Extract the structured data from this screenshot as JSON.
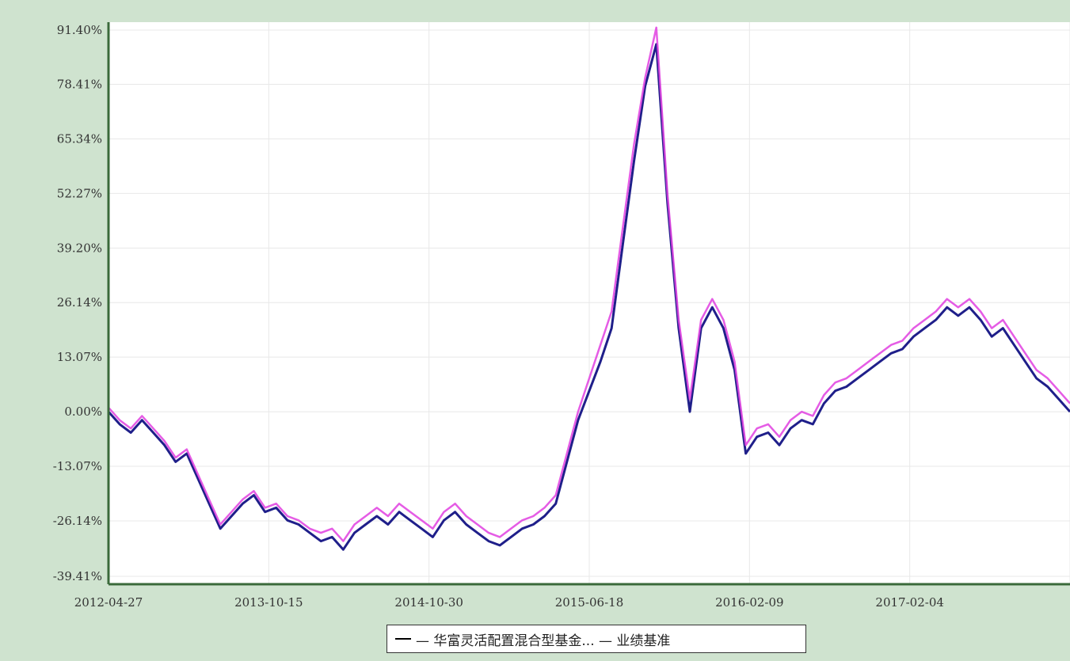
{
  "colors": {
    "frame": "#cfe3cf",
    "plot_bg": "#ffffff",
    "grid": "#e8e8e8",
    "series_fund": "#1f1f8a",
    "series_bench": "#e040e0",
    "axis": "#3a6a3a"
  },
  "chart_data": {
    "type": "line",
    "y_tick_labels": [
      "91.40%",
      "78.41%",
      "65.34%",
      "52.27%",
      "39.20%",
      "26.14%",
      "13.07%",
      "0.00%",
      "-13.07%",
      "-26.14%",
      "-39.41%"
    ],
    "y_tick_values": [
      91.4,
      78.41,
      65.34,
      52.27,
      39.2,
      26.14,
      13.07,
      0.0,
      -13.07,
      -26.14,
      -39.41
    ],
    "x_tick_labels": [
      "2012-04-27",
      "2013-10-15",
      "2014-10-30",
      "2015-06-18",
      "2016-02-09",
      "2017-02-04"
    ],
    "ylim": [
      -39.41,
      91.4
    ],
    "grid": true,
    "legend_position": "bottom",
    "legend_text": "— 华富灵活配置混合型基金... — 业绩基准",
    "series": [
      {
        "color_key": "series_fund",
        "values": [
          0,
          -3,
          -5,
          -2,
          -5,
          -8,
          -12,
          -10,
          -16,
          -22,
          -28,
          -25,
          -22,
          -20,
          -24,
          -23,
          -26,
          -27,
          -29,
          -31,
          -30,
          -33,
          -29,
          -27,
          -25,
          -27,
          -24,
          -26,
          -28,
          -30,
          -26,
          -24,
          -27,
          -29,
          -31,
          -32,
          -30,
          -28,
          -27,
          -25,
          -22,
          -12,
          -2,
          5,
          12,
          20,
          40,
          60,
          78,
          88,
          50,
          20,
          0,
          20,
          25,
          20,
          10,
          -10,
          -6,
          -5,
          -8,
          -4,
          -2,
          -3,
          2,
          5,
          6,
          8,
          10,
          12,
          14,
          15,
          18,
          20,
          22,
          25,
          23,
          25,
          22,
          18,
          20,
          16,
          12,
          8,
          6,
          3,
          0
        ]
      },
      {
        "color_key": "series_bench",
        "values": [
          1,
          -2,
          -4,
          -1,
          -4,
          -7,
          -11,
          -9,
          -15,
          -21,
          -27,
          -24,
          -21,
          -19,
          -23,
          -22,
          -25,
          -26,
          -28,
          -29,
          -28,
          -31,
          -27,
          -25,
          -23,
          -25,
          -22,
          -24,
          -26,
          -28,
          -24,
          -22,
          -25,
          -27,
          -29,
          -30,
          -28,
          -26,
          -25,
          -23,
          -20,
          -10,
          0,
          8,
          16,
          24,
          44,
          64,
          80,
          92,
          52,
          22,
          3,
          22,
          27,
          22,
          12,
          -8,
          -4,
          -3,
          -6,
          -2,
          0,
          -1,
          4,
          7,
          8,
          10,
          12,
          14,
          16,
          17,
          20,
          22,
          24,
          27,
          25,
          27,
          24,
          20,
          22,
          18,
          14,
          10,
          8,
          5,
          2
        ]
      }
    ]
  }
}
